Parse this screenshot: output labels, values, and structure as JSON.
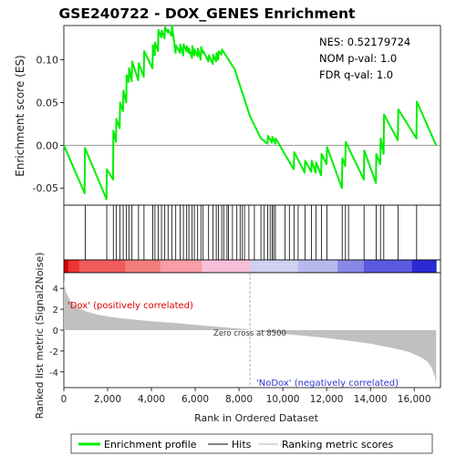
{
  "chart_data": {
    "type": "line",
    "title": "GSE240722 - DOX_GENES Enrichment",
    "stats": {
      "nes": "NES: 0.52179724",
      "nom_p": "NOM p-val: 1.0",
      "fdr_q": "FDR q-val: 1.0"
    },
    "es_panel": {
      "ylabel": "Enrichment score (ES)",
      "ylim": [
        -0.07,
        0.14
      ],
      "yticks": [
        -0.05,
        0.0,
        0.05,
        0.1
      ],
      "ytick_labels": [
        "-0.05",
        "0.00",
        "0.05",
        "0.10"
      ],
      "xlim": [
        0,
        17200
      ],
      "series": [
        {
          "name": "Enrichment profile",
          "color": "#00ee00",
          "x": [
            0,
            950,
            960,
            1950,
            1960,
            2250,
            2260,
            2380,
            2400,
            2550,
            2570,
            2700,
            2720,
            2850,
            2870,
            2960,
            2980,
            3100,
            3120,
            3400,
            3420,
            3650,
            3670,
            4050,
            4070,
            4150,
            4170,
            4300,
            4320,
            4450,
            4470,
            4600,
            4620,
            4750,
            4770,
            4920,
            4940,
            5100,
            5120,
            5300,
            5320,
            5450,
            5470,
            5600,
            5620,
            5700,
            5720,
            5850,
            5870,
            5950,
            5970,
            6100,
            6120,
            6250,
            6270,
            6350,
            6370,
            6600,
            6620,
            6800,
            6820,
            6950,
            6970,
            7050,
            7070,
            7200,
            7220,
            7800,
            8500,
            9000,
            9300,
            9320,
            9500,
            9520,
            9650,
            9670,
            10500,
            10520,
            11000,
            11020,
            11300,
            11320,
            11500,
            11520,
            11750,
            11770,
            12000,
            12020,
            12700,
            12720,
            12850,
            12870,
            13700,
            13720,
            14250,
            14270,
            14450,
            14470,
            14600,
            14620,
            15250,
            15270,
            16100,
            16120,
            17000
          ],
          "y": [
            0.0,
            -0.056,
            -0.003,
            -0.063,
            -0.028,
            -0.04,
            0.017,
            0.004,
            0.031,
            0.02,
            0.05,
            0.04,
            0.064,
            0.05,
            0.082,
            0.074,
            0.09,
            0.075,
            0.098,
            0.076,
            0.096,
            0.08,
            0.11,
            0.09,
            0.117,
            0.105,
            0.12,
            0.11,
            0.135,
            0.126,
            0.134,
            0.125,
            0.138,
            0.132,
            0.135,
            0.128,
            0.14,
            0.108,
            0.117,
            0.108,
            0.118,
            0.105,
            0.118,
            0.11,
            0.116,
            0.108,
            0.113,
            0.102,
            0.116,
            0.105,
            0.112,
            0.104,
            0.113,
            0.1,
            0.115,
            0.108,
            0.11,
            0.098,
            0.105,
            0.095,
            0.106,
            0.098,
            0.108,
            0.1,
            0.11,
            0.106,
            0.112,
            0.089,
            0.034,
            0.008,
            0.002,
            0.011,
            0.003,
            0.01,
            0.002,
            0.008,
            -0.028,
            -0.008,
            -0.032,
            -0.018,
            -0.031,
            -0.018,
            -0.032,
            -0.02,
            -0.035,
            -0.01,
            -0.022,
            -0.002,
            -0.05,
            -0.015,
            -0.024,
            0.004,
            -0.04,
            -0.006,
            -0.044,
            -0.01,
            -0.022,
            0.008,
            -0.01,
            0.036,
            0.006,
            0.042,
            0.008,
            0.051,
            0.0
          ]
        }
      ]
    },
    "hits": [
      980,
      1960,
      2260,
      2390,
      2560,
      2710,
      2860,
      2970,
      3110,
      3410,
      3660,
      4060,
      4160,
      4310,
      4460,
      4610,
      4760,
      4930,
      5110,
      5310,
      5460,
      5610,
      5710,
      5860,
      5960,
      6110,
      6260,
      6360,
      6610,
      6810,
      6960,
      7060,
      7210,
      7300,
      7450,
      7520,
      7700,
      7900,
      8050,
      8150,
      8250,
      8450,
      8700,
      9000,
      9150,
      9310,
      9420,
      9510,
      9580,
      9660,
      10100,
      10300,
      10510,
      10700,
      11010,
      11310,
      11510,
      11760,
      12010,
      12710,
      12860,
      13000,
      13710,
      14260,
      14460,
      14610,
      15260,
      16110
    ],
    "rank_panel": {
      "ylabel": "Ranked list metric (Signal2Noise)",
      "xlabel": "Rank in Ordered Dataset",
      "ylim": [
        -5.5,
        5.5
      ],
      "yticks": [
        -4,
        -2,
        0,
        2,
        4
      ],
      "ytick_labels": [
        "-4",
        "-2",
        "0",
        "2",
        "4"
      ],
      "xticks": [
        0,
        2000,
        4000,
        6000,
        8000,
        10000,
        12000,
        14000,
        16000
      ],
      "xtick_labels": [
        "0",
        "2,000",
        "4,000",
        "6,000",
        "8,000",
        "10,000",
        "12,000",
        "14,000",
        "16,000"
      ],
      "zero_cross_label": "Zero cross at 8500",
      "zero_cross": 8500,
      "pos_label": "'Dox' (positively correlated)",
      "neg_label": "'NoDox' (negatively correlated)",
      "pos_color": "#dd0000",
      "neg_color": "#3333cc",
      "fill_color": "#c0c0c0",
      "x": [
        0,
        100,
        300,
        600,
        1000,
        1500,
        2000,
        3000,
        4000,
        5000,
        6000,
        7000,
        8000,
        8500,
        9000,
        10000,
        11000,
        12000,
        13000,
        14000,
        15000,
        15800,
        16300,
        16600,
        16800,
        16950,
        17000
      ],
      "y": [
        4.8,
        3.6,
        2.8,
        2.2,
        1.8,
        1.5,
        1.3,
        1.05,
        0.85,
        0.7,
        0.5,
        0.32,
        0.15,
        0.0,
        -0.12,
        -0.35,
        -0.55,
        -0.75,
        -1.0,
        -1.3,
        -1.7,
        -2.1,
        -2.6,
        -3.0,
        -3.6,
        -4.5,
        -5.2
      ]
    },
    "heatmap_colors": [
      "#d40000",
      "#ee3333",
      "#f25b5b",
      "#f47d7d",
      "#f79ea9",
      "#f7bfd9",
      "#d0d0f0",
      "#b8b8ee",
      "#8888e6",
      "#5a5ae0",
      "#2a2ad4"
    ],
    "heatmap_stops": [
      0,
      200,
      700,
      2800,
      4400,
      6300,
      8500,
      10700,
      12500,
      13700,
      15900,
      17000
    ],
    "legend": {
      "items": [
        {
          "label": "Enrichment profile",
          "color": "#00ee00"
        },
        {
          "label": "Hits",
          "color": "#000000"
        },
        {
          "label": "Ranking metric scores",
          "color": "#c0c0c0"
        }
      ]
    }
  }
}
